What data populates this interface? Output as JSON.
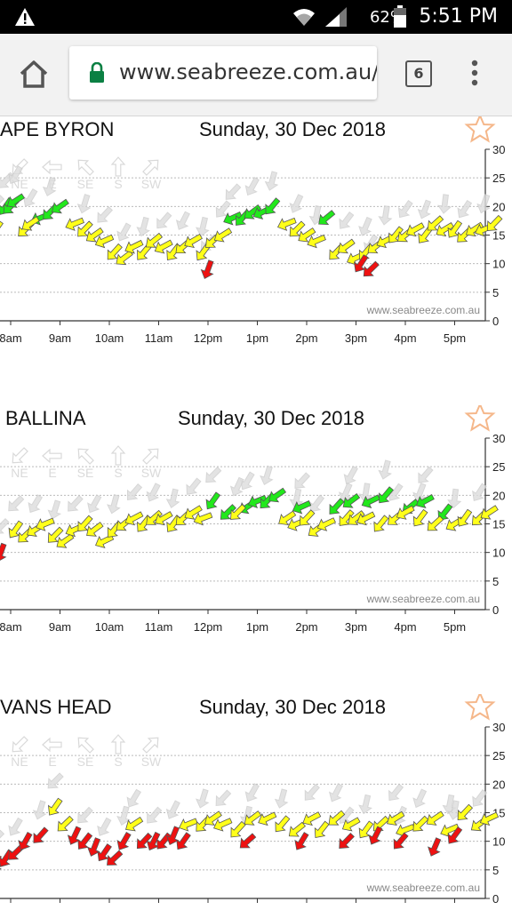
{
  "status_bar": {
    "battery": "62%",
    "time": "5:51 PM"
  },
  "browser": {
    "url": "www.seabreeze.com.au/w",
    "tab_count": "6"
  },
  "colors": {
    "yellow": "#ffff1a",
    "green": "#22e81c",
    "red": "#ee1111",
    "gray": "#dddddd"
  },
  "panels": [
    {
      "title": "APE BYRON",
      "date": "Sunday, 30 Dec 2018",
      "watermark": "www.seabreeze.com.au",
      "direction_labels": [
        "NE",
        "E",
        "SE",
        "S",
        "SW"
      ],
      "chart_data": {
        "type": "scatter",
        "ylim": [
          0,
          30
        ],
        "y_ticks": [
          "0",
          "5",
          "10",
          "15",
          "20",
          "25",
          "30"
        ],
        "x_ticks": [
          "8am",
          "9am",
          "10am",
          "11am",
          "12pm",
          "1pm",
          "2pm",
          "3pm",
          "4pm",
          "5pm"
        ],
        "series": [
          {
            "color": "green",
            "points": [
              [
                7.9,
                20
              ],
              [
                8.0,
                20
              ],
              [
                8.1,
                21
              ],
              [
                8.6,
                18
              ],
              [
                8.8,
                19
              ],
              [
                9.0,
                20
              ],
              [
                12.5,
                18
              ],
              [
                12.7,
                18
              ],
              [
                12.9,
                19
              ],
              [
                13.1,
                19
              ],
              [
                13.3,
                20
              ],
              [
                14.4,
                18
              ]
            ]
          },
          {
            "color": "yellow",
            "points": [
              [
                7.7,
                16
              ],
              [
                8.3,
                16
              ],
              [
                8.4,
                17
              ],
              [
                9.3,
                17
              ],
              [
                9.5,
                16
              ],
              [
                9.7,
                15
              ],
              [
                9.9,
                14
              ],
              [
                10.1,
                12
              ],
              [
                10.3,
                11
              ],
              [
                10.5,
                13
              ],
              [
                10.7,
                12
              ],
              [
                10.9,
                14
              ],
              [
                11.1,
                13
              ],
              [
                11.3,
                12
              ],
              [
                11.5,
                13
              ],
              [
                11.7,
                14
              ],
              [
                11.9,
                12
              ],
              [
                12.1,
                14
              ],
              [
                12.3,
                15
              ],
              [
                13.6,
                17
              ],
              [
                13.8,
                16
              ],
              [
                14.0,
                15
              ],
              [
                14.2,
                14
              ],
              [
                14.6,
                12
              ],
              [
                14.8,
                13
              ],
              [
                15.0,
                11
              ],
              [
                15.2,
                12
              ],
              [
                15.4,
                13
              ],
              [
                15.6,
                14
              ],
              [
                15.8,
                15
              ],
              [
                16.0,
                15
              ],
              [
                16.2,
                16
              ],
              [
                16.4,
                15
              ],
              [
                16.6,
                17
              ],
              [
                16.8,
                16
              ],
              [
                17.0,
                16
              ],
              [
                17.2,
                15
              ],
              [
                17.4,
                16
              ],
              [
                17.6,
                16
              ],
              [
                17.8,
                17
              ]
            ]
          },
          {
            "color": "red",
            "points": [
              [
                12.0,
                9
              ],
              [
                15.1,
                10
              ],
              [
                15.3,
                9
              ]
            ]
          }
        ]
      }
    },
    {
      "title": "BALLINA",
      "date": "Sunday, 30 Dec 2018",
      "watermark": "www.seabreeze.com.au",
      "direction_labels": [
        "NE",
        "E",
        "SE",
        "S",
        "SW"
      ],
      "chart_data": {
        "type": "scatter",
        "ylim": [
          0,
          30
        ],
        "y_ticks": [
          "0",
          "5",
          "10",
          "15",
          "20",
          "25",
          "30"
        ],
        "x_ticks": [
          "8am",
          "9am",
          "10am",
          "11am",
          "12pm",
          "1pm",
          "2pm",
          "3pm",
          "4pm",
          "5pm"
        ],
        "series": [
          {
            "color": "green",
            "points": [
              [
                12.1,
                19
              ],
              [
                12.4,
                17
              ],
              [
                12.8,
                18
              ],
              [
                13.0,
                19
              ],
              [
                13.2,
                19
              ],
              [
                13.4,
                20
              ],
              [
                13.9,
                18
              ],
              [
                14.6,
                18
              ],
              [
                14.9,
                19
              ],
              [
                15.3,
                19
              ],
              [
                15.6,
                20
              ],
              [
                16.1,
                18
              ],
              [
                16.4,
                19
              ],
              [
                16.8,
                17
              ]
            ]
          },
          {
            "color": "yellow",
            "points": [
              [
                8.1,
                14
              ],
              [
                8.3,
                13
              ],
              [
                8.5,
                14
              ],
              [
                8.7,
                15
              ],
              [
                8.9,
                13
              ],
              [
                9.1,
                12
              ],
              [
                9.3,
                14
              ],
              [
                9.5,
                15
              ],
              [
                9.7,
                14
              ],
              [
                9.9,
                12
              ],
              [
                10.1,
                14
              ],
              [
                10.3,
                15
              ],
              [
                10.5,
                16
              ],
              [
                10.7,
                15
              ],
              [
                10.9,
                16
              ],
              [
                11.1,
                16
              ],
              [
                11.3,
                15
              ],
              [
                11.5,
                16
              ],
              [
                11.7,
                17
              ],
              [
                11.9,
                16
              ],
              [
                12.6,
                17
              ],
              [
                13.6,
                16
              ],
              [
                13.8,
                15
              ],
              [
                14.0,
                16
              ],
              [
                14.2,
                14
              ],
              [
                14.4,
                15
              ],
              [
                14.8,
                16
              ],
              [
                15.0,
                16
              ],
              [
                15.2,
                16
              ],
              [
                15.5,
                15
              ],
              [
                15.8,
                16
              ],
              [
                16.0,
                17
              ],
              [
                16.3,
                16
              ],
              [
                16.6,
                15
              ],
              [
                17.0,
                15
              ],
              [
                17.2,
                16
              ],
              [
                17.5,
                16
              ],
              [
                17.7,
                17
              ]
            ]
          },
          {
            "color": "red",
            "points": [
              [
                7.8,
                10
              ]
            ]
          }
        ]
      }
    },
    {
      "title": "VANS HEAD",
      "date": "Sunday, 30 Dec 2018",
      "watermark": "www.seabreeze.com.au",
      "direction_labels": [
        "NE",
        "E",
        "SE",
        "S",
        "SW"
      ],
      "chart_data": {
        "type": "scatter",
        "ylim": [
          0,
          30
        ],
        "y_ticks": [
          "0",
          "5",
          "10",
          "15",
          "20",
          "25",
          "30"
        ],
        "x_ticks": [
          "8am",
          "9am",
          "10am",
          "11am",
          "12pm",
          "1pm",
          "2pm",
          "3pm",
          "4pm",
          "5pm"
        ],
        "series": [
          {
            "color": "yellow",
            "points": [
              [
                8.9,
                16
              ],
              [
                9.1,
                13
              ],
              [
                10.5,
                13
              ],
              [
                11.6,
                13
              ],
              [
                11.9,
                13
              ],
              [
                12.1,
                14
              ],
              [
                12.3,
                13
              ],
              [
                12.6,
                12
              ],
              [
                12.9,
                14
              ],
              [
                13.2,
                14
              ],
              [
                13.5,
                13
              ],
              [
                13.8,
                12
              ],
              [
                14.1,
                14
              ],
              [
                14.3,
                12
              ],
              [
                14.6,
                14
              ],
              [
                14.9,
                13
              ],
              [
                15.2,
                12
              ],
              [
                15.5,
                13
              ],
              [
                15.8,
                14
              ],
              [
                16.0,
                12
              ],
              [
                16.3,
                13
              ],
              [
                16.6,
                14
              ],
              [
                16.9,
                12
              ],
              [
                17.2,
                15
              ],
              [
                17.5,
                13
              ],
              [
                17.7,
                14
              ]
            ]
          },
          {
            "color": "red",
            "points": [
              [
                7.7,
                6
              ],
              [
                7.9,
                7
              ],
              [
                8.1,
                8
              ],
              [
                8.3,
                10
              ],
              [
                8.6,
                11
              ],
              [
                9.3,
                11
              ],
              [
                9.5,
                10
              ],
              [
                9.7,
                9
              ],
              [
                9.9,
                8
              ],
              [
                10.1,
                7
              ],
              [
                10.3,
                10
              ],
              [
                10.7,
                10
              ],
              [
                10.9,
                10
              ],
              [
                11.1,
                10
              ],
              [
                11.3,
                11
              ],
              [
                11.5,
                10
              ],
              [
                12.8,
                10
              ],
              [
                13.9,
                10
              ],
              [
                14.8,
                10
              ],
              [
                15.4,
                11
              ],
              [
                15.9,
                10
              ],
              [
                16.6,
                9
              ],
              [
                17.0,
                11
              ]
            ]
          }
        ]
      }
    }
  ]
}
